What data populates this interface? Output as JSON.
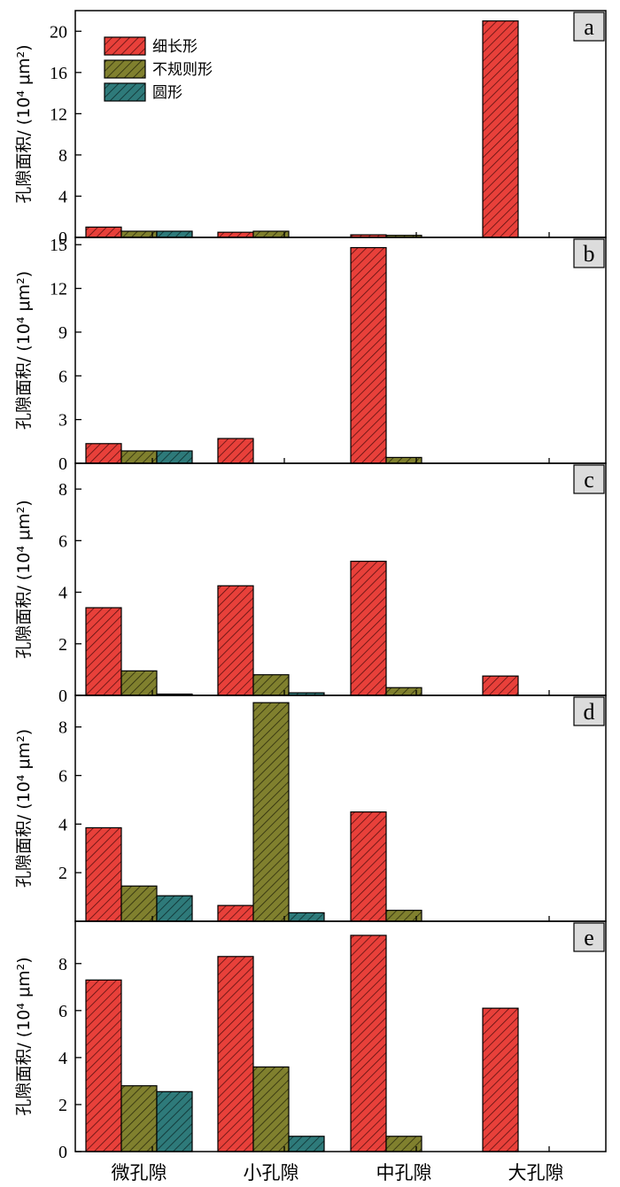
{
  "chart_data": {
    "type": "bar",
    "categories": [
      "微孔隙",
      "小孔隙",
      "中孔隙",
      "大孔隙"
    ],
    "legend": {
      "placement": "top-left",
      "entries": [
        "细长形",
        "不规则形",
        "圆形"
      ]
    },
    "series_colors": [
      "#e8403a",
      "#80802e",
      "#2e7a7a"
    ],
    "ylabel": "孔隙面积/ (10⁴ μm²)",
    "panels": [
      {
        "label": "a",
        "ylim": [
          0,
          22
        ],
        "yticks": [
          0,
          4,
          8,
          12,
          16,
          20
        ],
        "series": [
          {
            "name": "细长形",
            "values": [
              1.0,
              0.5,
              0.25,
              21.0
            ]
          },
          {
            "name": "不规则形",
            "values": [
              0.6,
              0.6,
              0.2,
              0
            ]
          },
          {
            "name": "圆形",
            "values": [
              0.6,
              0,
              0,
              0
            ]
          }
        ]
      },
      {
        "label": "b",
        "ylim": [
          0,
          15.5
        ],
        "yticks": [
          0,
          3,
          6,
          9,
          12,
          15
        ],
        "series": [
          {
            "name": "细长形",
            "values": [
              1.35,
              1.7,
              14.8,
              0
            ]
          },
          {
            "name": "不规则形",
            "values": [
              0.85,
              0,
              0.4,
              0
            ]
          },
          {
            "name": "圆形",
            "values": [
              0.85,
              0,
              0,
              0
            ]
          }
        ]
      },
      {
        "label": "c",
        "ylim": [
          0,
          9
        ],
        "yticks": [
          0,
          2,
          4,
          6,
          8
        ],
        "series": [
          {
            "name": "细长形",
            "values": [
              3.4,
              4.25,
              5.2,
              0.75
            ]
          },
          {
            "name": "不规则形",
            "values": [
              0.95,
              0.8,
              0.3,
              0
            ]
          },
          {
            "name": "圆形",
            "values": [
              0.05,
              0.1,
              0,
              0
            ]
          }
        ]
      },
      {
        "label": "d",
        "ylim": [
          0,
          9.3
        ],
        "yticks": [
          2,
          4,
          6,
          8
        ],
        "series": [
          {
            "name": "细长形",
            "values": [
              3.85,
              0.65,
              4.5,
              0
            ]
          },
          {
            "name": "不规则形",
            "values": [
              1.45,
              9.0,
              0.45,
              0
            ]
          },
          {
            "name": "圆形",
            "values": [
              1.05,
              0.35,
              0,
              0
            ]
          }
        ]
      },
      {
        "label": "e",
        "ylim": [
          0,
          9.8
        ],
        "yticks": [
          0,
          2,
          4,
          6,
          8
        ],
        "series": [
          {
            "name": "细长形",
            "values": [
              7.3,
              8.3,
              9.2,
              6.1
            ]
          },
          {
            "name": "不规则形",
            "values": [
              2.8,
              3.6,
              0.65,
              0
            ]
          },
          {
            "name": "圆形",
            "values": [
              2.55,
              0.65,
              0,
              0
            ]
          }
        ]
      }
    ]
  }
}
